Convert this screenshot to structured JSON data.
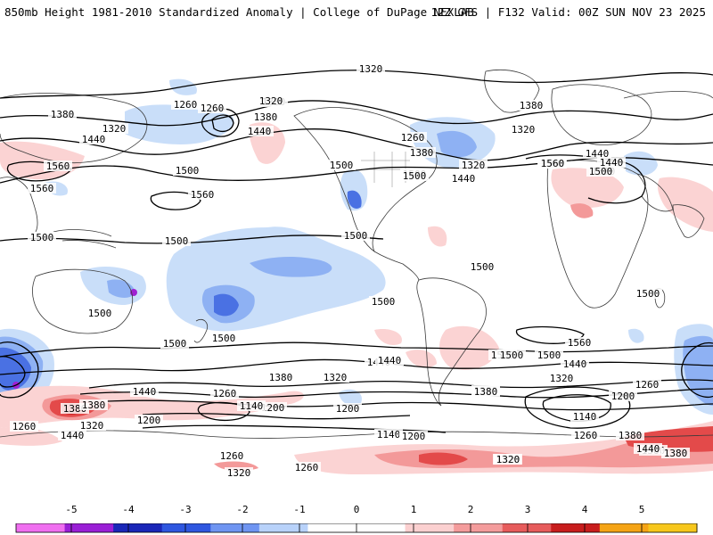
{
  "header": {
    "title_left": "850mb Height 1981-2010 Standardized Anomaly | College of DuPage NEXLAB",
    "title_right": "12Z GFS | F132 Valid: 00Z SUN NOV 23 2025"
  },
  "map": {
    "contour_labels": [
      {
        "id": "c1",
        "text": "1320"
      },
      {
        "id": "c2",
        "text": "1380"
      },
      {
        "id": "c3",
        "text": "1260"
      },
      {
        "id": "c4",
        "text": "1260"
      },
      {
        "id": "c5",
        "text": "1320"
      },
      {
        "id": "c6",
        "text": "1380"
      },
      {
        "id": "c7",
        "text": "1440"
      },
      {
        "id": "c8",
        "text": "1320"
      },
      {
        "id": "c9",
        "text": "1380"
      },
      {
        "id": "c10",
        "text": "1440"
      },
      {
        "id": "c11",
        "text": "1500"
      },
      {
        "id": "c12",
        "text": "1560"
      },
      {
        "id": "c13",
        "text": "1560"
      },
      {
        "id": "c14",
        "text": "1560"
      },
      {
        "id": "c15",
        "text": "1500"
      },
      {
        "id": "c16",
        "text": "1500"
      },
      {
        "id": "c17",
        "text": "1500"
      },
      {
        "id": "c18",
        "text": "1500"
      },
      {
        "id": "c19",
        "text": "1500"
      },
      {
        "id": "c20",
        "text": "1500"
      },
      {
        "id": "c21",
        "text": "1500"
      },
      {
        "id": "c22",
        "text": "1500"
      },
      {
        "id": "c23",
        "text": "1440"
      },
      {
        "id": "c24",
        "text": "1380"
      },
      {
        "id": "c25",
        "text": "1320"
      },
      {
        "id": "c26",
        "text": "1260"
      },
      {
        "id": "c27",
        "text": "1200"
      },
      {
        "id": "c28",
        "text": "1140"
      },
      {
        "id": "c29",
        "text": "1200"
      },
      {
        "id": "c30",
        "text": "1260"
      },
      {
        "id": "c31",
        "text": "1140"
      },
      {
        "id": "c32",
        "text": "1200"
      },
      {
        "id": "c33",
        "text": "1260"
      },
      {
        "id": "c34",
        "text": "1320"
      },
      {
        "id": "c35",
        "text": "1380"
      },
      {
        "id": "c36",
        "text": "1440"
      },
      {
        "id": "c37",
        "text": "1380"
      },
      {
        "id": "c38",
        "text": "1320"
      },
      {
        "id": "c39",
        "text": "1260"
      },
      {
        "id": "c40",
        "text": "1200"
      },
      {
        "id": "c41",
        "text": "1380"
      },
      {
        "id": "c42",
        "text": "1320"
      },
      {
        "id": "c43",
        "text": "1500"
      },
      {
        "id": "c44",
        "text": "1440"
      },
      {
        "id": "c45",
        "text": "1380"
      },
      {
        "id": "c46",
        "text": "1440"
      },
      {
        "id": "c47",
        "text": "1560"
      },
      {
        "id": "c48",
        "text": "1500"
      },
      {
        "id": "c49",
        "text": "1500"
      },
      {
        "id": "c50",
        "text": "1500"
      },
      {
        "id": "c51",
        "text": "1320"
      },
      {
        "id": "c52",
        "text": "1440"
      },
      {
        "id": "c53",
        "text": "1560"
      },
      {
        "id": "c54",
        "text": "1500"
      },
      {
        "id": "c55",
        "text": "1440"
      },
      {
        "id": "c56",
        "text": "1380"
      },
      {
        "id": "c57",
        "text": "1320"
      },
      {
        "id": "c58",
        "text": "1260"
      },
      {
        "id": "c59",
        "text": "1200"
      },
      {
        "id": "c60",
        "text": "1140"
      },
      {
        "id": "c61",
        "text": "1260"
      },
      {
        "id": "c62",
        "text": "1380"
      },
      {
        "id": "c63",
        "text": "1440"
      },
      {
        "id": "c64",
        "text": "1380"
      },
      {
        "id": "c65",
        "text": "1320"
      },
      {
        "id": "c66",
        "text": "1260"
      },
      {
        "id": "c67",
        "text": "1380"
      },
      {
        "id": "c68",
        "text": "1440"
      },
      {
        "id": "c69",
        "text": "1560"
      },
      {
        "id": "c70",
        "text": "1500"
      },
      {
        "id": "c71",
        "text": "1500"
      },
      {
        "id": "c72",
        "text": "1500"
      },
      {
        "id": "c73",
        "text": "1500"
      },
      {
        "id": "c74",
        "text": "1440"
      },
      {
        "id": "c75",
        "text": "1380"
      },
      {
        "id": "c76",
        "text": "1320"
      }
    ]
  },
  "colorbar": {
    "tick_labels": [
      "-5",
      "-4",
      "-3",
      "-2",
      "-1",
      "0",
      "1",
      "2",
      "3",
      "4",
      "5"
    ],
    "colors": [
      "#f06ff0",
      "#9a1fd6",
      "#1a27b8",
      "#2f57e0",
      "#6f95f2",
      "#b8d2fa",
      "#ffffff",
      "#ffffff",
      "#fbd0d0",
      "#f49c9c",
      "#e75c5c",
      "#c81d1d",
      "#f5a415",
      "#f7c71c"
    ]
  },
  "anomaly_colors": {
    "neg1": "#c9def9",
    "neg2": "#8eb1f3",
    "neg3": "#4a71e3",
    "neg4": "#1f35b8",
    "neg5": "#a020d2",
    "pos1": "#fbd3d3",
    "pos2": "#f39999",
    "pos3": "#e34a4a",
    "pos4": "#c30f0f"
  }
}
